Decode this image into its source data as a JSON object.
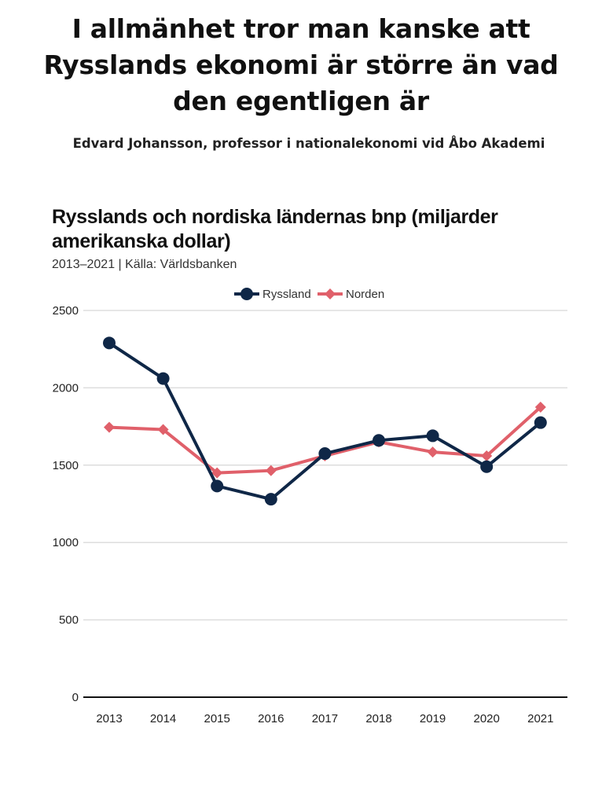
{
  "quote": {
    "text": "I allmänhet tror man kanske att Rysslands ekonomi är större än vad den egentligen är",
    "author": "Edvard Johansson, professor i nationalekonomi vid Åbo Akademi"
  },
  "chart_data": {
    "type": "line",
    "title": "Rysslands och nordiska ländernas bnp (miljarder amerikanska dollar)",
    "subtitle": "2013–2021 | Källa: Världsbanken",
    "x": [
      "2013",
      "2014",
      "2015",
      "2016",
      "2017",
      "2018",
      "2019",
      "2020",
      "2021"
    ],
    "yticks": [
      "0",
      "500",
      "1000",
      "1500",
      "2000",
      "2500"
    ],
    "ylim": [
      0,
      2500
    ],
    "legend_position": "top-center",
    "series": [
      {
        "name": "Ryssland",
        "color": "#0f2747",
        "marker": "circle",
        "values": [
          2290,
          2060,
          1365,
          1280,
          1575,
          1660,
          1690,
          1490,
          1775
        ]
      },
      {
        "name": "Norden",
        "color": "#e0606a",
        "marker": "diamond",
        "values": [
          1745,
          1730,
          1450,
          1465,
          1560,
          1650,
          1585,
          1560,
          1875
        ]
      }
    ]
  }
}
